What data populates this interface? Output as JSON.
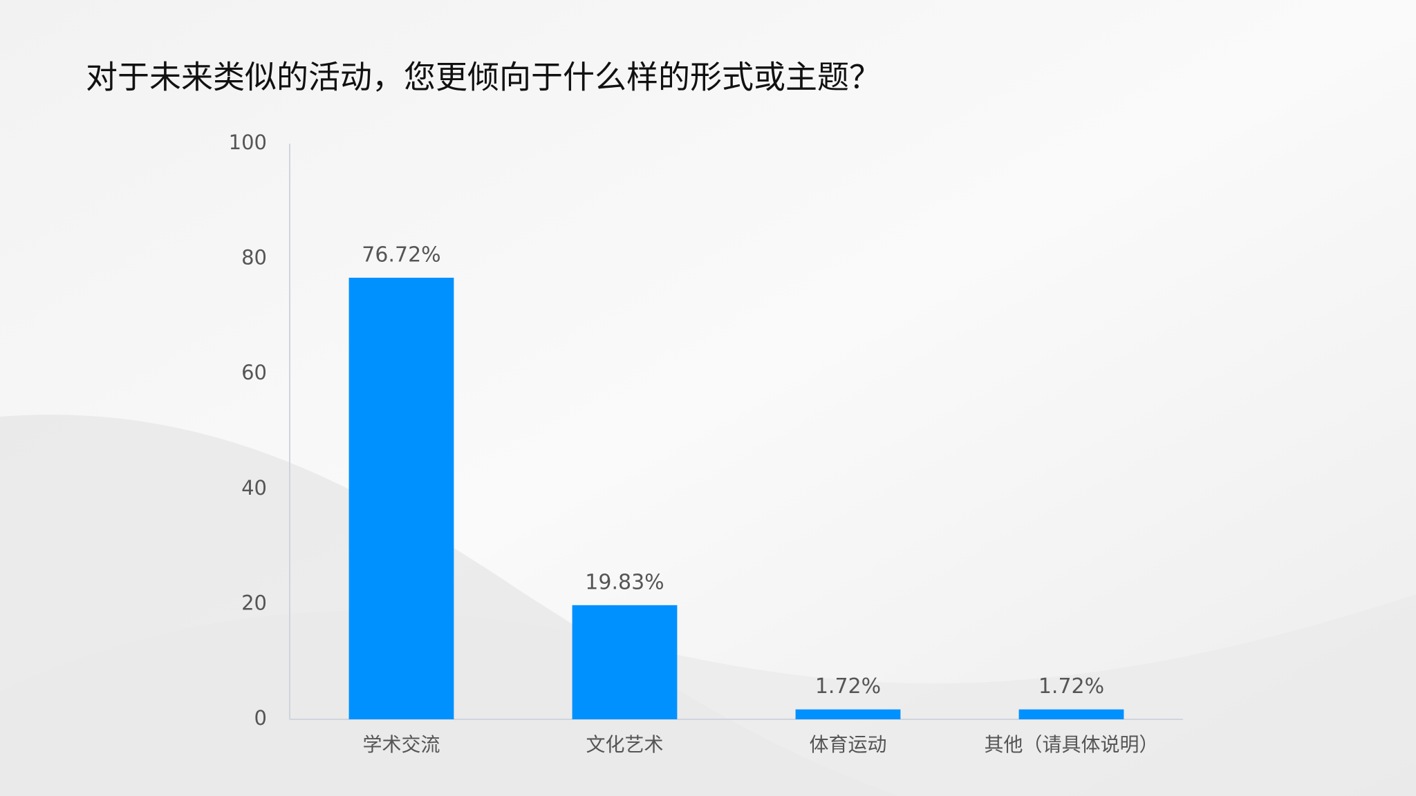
{
  "chart_data": {
    "type": "bar",
    "title": "对于未来类似的活动，您更倾向于什么样的形式或主题？",
    "categories": [
      "学术交流",
      "文化艺术",
      "体育运动",
      "其他（请具体说明）"
    ],
    "values": [
      76.72,
      19.83,
      1.72,
      1.72
    ],
    "value_labels": [
      "76.72%",
      "19.83%",
      "1.72%",
      "1.72%"
    ],
    "color": "#0091ff",
    "ylim": [
      0,
      100
    ],
    "yticks": [
      0,
      20,
      40,
      60,
      80,
      100
    ],
    "grid": false
  }
}
